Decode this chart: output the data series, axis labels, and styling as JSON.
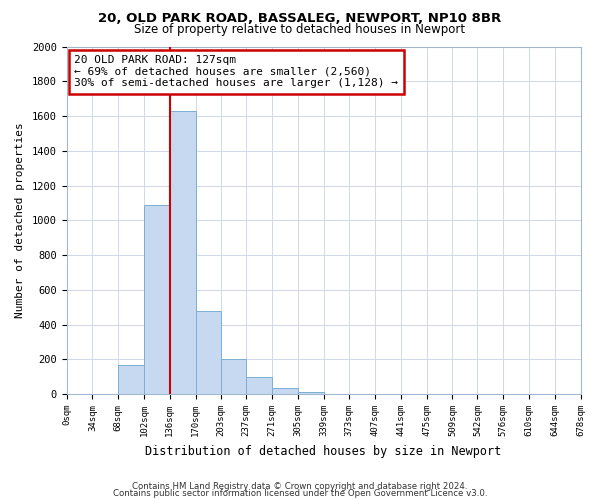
{
  "title_line1": "20, OLD PARK ROAD, BASSALEG, NEWPORT, NP10 8BR",
  "title_line2": "Size of property relative to detached houses in Newport",
  "xlabel": "Distribution of detached houses by size in Newport",
  "ylabel": "Number of detached properties",
  "bar_lefts": [
    0,
    34,
    68,
    102,
    136,
    170,
    203,
    237,
    271,
    305,
    339,
    373,
    407,
    441,
    475,
    509,
    542,
    576,
    610,
    644
  ],
  "bar_widths": [
    34,
    34,
    34,
    34,
    34,
    33,
    34,
    34,
    34,
    34,
    34,
    34,
    34,
    34,
    34,
    33,
    34,
    34,
    34,
    34
  ],
  "bar_heights": [
    0,
    0,
    170,
    1090,
    1630,
    480,
    200,
    100,
    35,
    15,
    0,
    0,
    0,
    0,
    0,
    0,
    0,
    0,
    0,
    0
  ],
  "bar_color": "#c6d9f0",
  "bar_edgecolor": "#7bafd4",
  "vline_x": 136,
  "vline_color": "#cc0000",
  "annotation_title": "20 OLD PARK ROAD: 127sqm",
  "annotation_line1": "← 69% of detached houses are smaller (2,560)",
  "annotation_line2": "30% of semi-detached houses are larger (1,128) →",
  "annotation_box_edgecolor": "#cc0000",
  "ylim": [
    0,
    2000
  ],
  "xlim": [
    0,
    678
  ],
  "tick_labels": [
    "0sqm",
    "34sqm",
    "68sqm",
    "102sqm",
    "136sqm",
    "170sqm",
    "203sqm",
    "237sqm",
    "271sqm",
    "305sqm",
    "339sqm",
    "373sqm",
    "407sqm",
    "441sqm",
    "475sqm",
    "509sqm",
    "542sqm",
    "576sqm",
    "610sqm",
    "644sqm",
    "678sqm"
  ],
  "tick_positions": [
    0,
    34,
    68,
    102,
    136,
    170,
    203,
    237,
    271,
    305,
    339,
    373,
    407,
    441,
    475,
    509,
    542,
    576,
    610,
    644,
    678
  ],
  "footer_line1": "Contains HM Land Registry data © Crown copyright and database right 2024.",
  "footer_line2": "Contains public sector information licensed under the Open Government Licence v3.0."
}
